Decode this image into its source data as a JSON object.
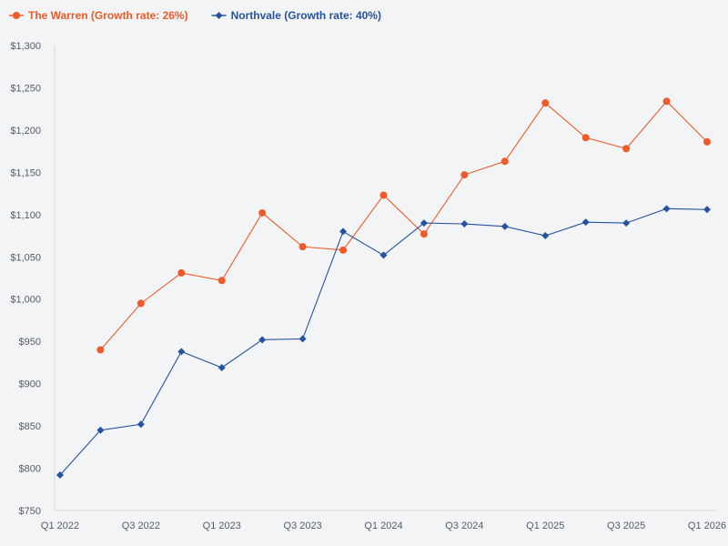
{
  "chart_data": {
    "type": "line",
    "title": "",
    "xlabel": "",
    "ylabel": "",
    "x": [
      "Q1 2022",
      "Q2 2022",
      "Q3 2022",
      "Q4 2022",
      "Q1 2023",
      "Q2 2023",
      "Q3 2023",
      "Q4 2023",
      "Q1 2024",
      "Q2 2024",
      "Q3 2024",
      "Q4 2024",
      "Q1 2025",
      "Q2 2025",
      "Q3 2025",
      "Q4 2025",
      "Q1 2026"
    ],
    "xtick_labels": [
      "Q1 2022",
      "Q3 2022",
      "Q1 2023",
      "Q3 2023",
      "Q1 2024",
      "Q3 2024",
      "Q1 2025",
      "Q3 2025",
      "Q1 2026"
    ],
    "ylim": [
      750,
      1300
    ],
    "yticks": [
      750,
      800,
      850,
      900,
      950,
      1000,
      1050,
      1100,
      1150,
      1200,
      1250,
      1300
    ],
    "ytick_labels": [
      "$750",
      "$800",
      "$850",
      "$900",
      "$950",
      "$1,000",
      "$1,050",
      "$1,100",
      "$1,150",
      "$1,200",
      "$1,250",
      "$1,300"
    ],
    "legend_position": "top-left",
    "grid": false,
    "series": [
      {
        "name": "The Warren (Growth rate: 26%)",
        "color": "#f05a28",
        "marker": "circle",
        "values": [
          null,
          940,
          995,
          1031,
          1022,
          1102,
          1062,
          1058,
          1123,
          1077,
          1147,
          1163,
          1232,
          1191,
          1178,
          1234,
          1186
        ]
      },
      {
        "name": "Northvale (Growth rate: 40%)",
        "color": "#2553a0",
        "marker": "diamond",
        "values": [
          792,
          845,
          852,
          938,
          919,
          952,
          953,
          1080,
          1052,
          1090,
          1089,
          1086,
          1075,
          1091,
          1090,
          1107,
          1106
        ]
      }
    ]
  }
}
